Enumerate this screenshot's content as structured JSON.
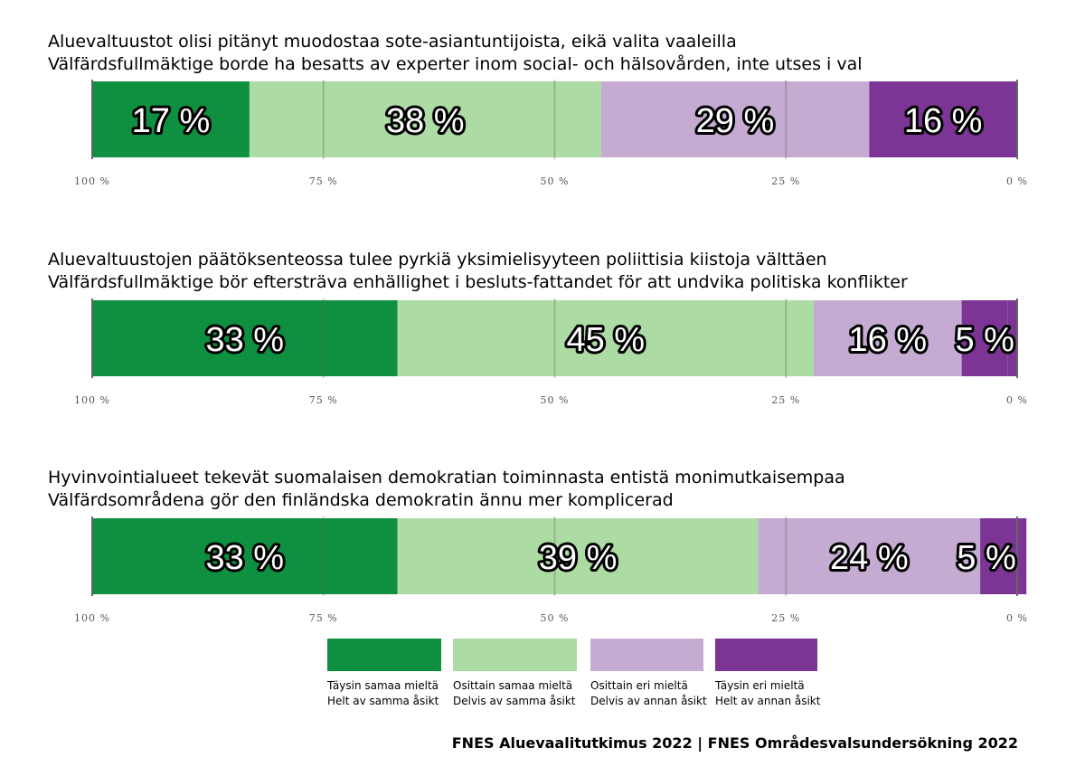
{
  "chart_data": {
    "type": "bar",
    "orientation": "horizontal-stacked-100",
    "x_ticks": [
      "100 %",
      "75 %",
      "50 %",
      "25 %",
      "0 %"
    ],
    "colors": [
      "#0f8f40",
      "#acdca4",
      "#c5abd2",
      "#7d3595"
    ],
    "series_names": [
      [
        "Täysin samaa mieltä",
        "Helt av samma åsikt"
      ],
      [
        "Osittain samaa mieltä",
        "Delvis av samma åsikt"
      ],
      [
        "Osittain eri mieltä",
        "Delvis av annan åsikt"
      ],
      [
        "Täysin eri mieltä",
        "Helt av annan åsikt"
      ]
    ],
    "items": [
      {
        "title_fi": "Aluevaltuustot olisi pitänyt muodostaa sote-asiantuntijoista, eikä valita vaaleilla",
        "title_sv": "Välfärdsfullmäktige borde ha besatts av experter inom social- och hälsovården, inte utses i val",
        "values": [
          17,
          38,
          29,
          16
        ],
        "labels": [
          "17 %",
          "38 %",
          "29 %",
          "16 %"
        ]
      },
      {
        "title_fi": "Aluevaltuustojen päätöksenteossa tulee pyrkiä yksimielisyyteen poliittisia kiistoja välttäen",
        "title_sv": "Välfärdsfullmäktige bör eftersträva enhällighet i besluts-fattandet för att undvika politiska konflikter",
        "values": [
          33,
          45,
          16,
          5
        ],
        "labels": [
          "33 %",
          "45 %",
          "16 %",
          "5 %"
        ]
      },
      {
        "title_fi": "Hyvinvointialueet tekevät suomalaisen demokratian toiminnasta entistä monimutkaisempaa",
        "title_sv": "Välfärdsområdena gör den finländska demokratin ännu mer komplicerad",
        "values": [
          33,
          39,
          24,
          5
        ],
        "labels": [
          "33 %",
          "39 %",
          "24 %",
          "5 %"
        ]
      }
    ]
  },
  "source": "FNES Aluevaalitutkimus 2022 | FNES Områdesvalsundersökning 2022"
}
